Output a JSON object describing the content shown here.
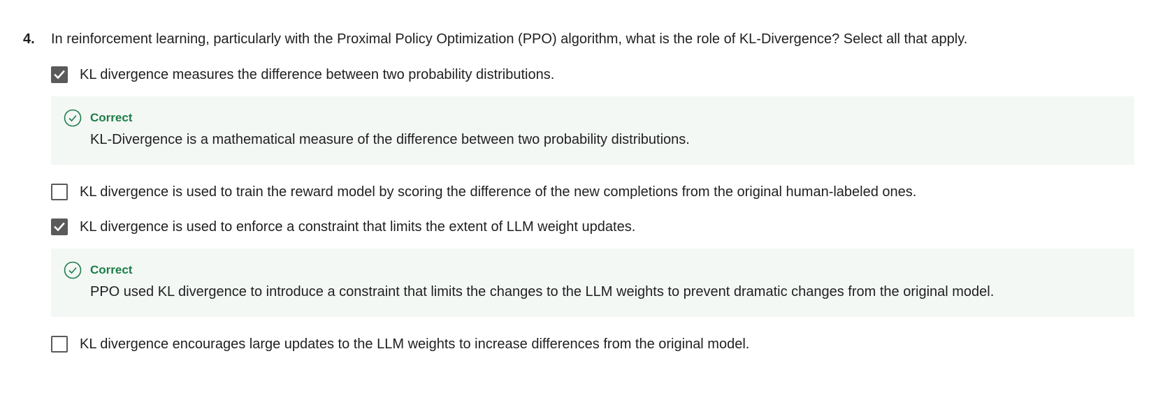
{
  "question": {
    "number": "4.",
    "text": "In reinforcement learning, particularly with the Proximal Policy Optimization (PPO) algorithm, what is the role of KL-Divergence? Select all that apply."
  },
  "options": [
    {
      "label": "KL divergence measures the difference between two probability distributions.",
      "checked": true,
      "feedback": {
        "status": "Correct",
        "text": "KL-Divergence is a mathematical measure of the difference between two probability distributions."
      }
    },
    {
      "label": "KL divergence is used to train the reward model by scoring the difference of the new completions from the original human-labeled ones.",
      "checked": false
    },
    {
      "label": "KL divergence is used to enforce a constraint that limits the extent of LLM weight updates.",
      "checked": true,
      "feedback": {
        "status": "Correct",
        "text": "PPO used KL divergence to introduce a constraint that limits the changes to the LLM weights to prevent dramatic changes from the original model."
      }
    },
    {
      "label": "KL divergence encourages large updates to the LLM weights to increase differences from the original model.",
      "checked": false
    }
  ],
  "colors": {
    "correct_green": "#1e7d48",
    "feedback_bg": "#f3f8f5",
    "checkbox_gray": "#5a5a5a"
  },
  "icons": {
    "checked": "checkmark-icon",
    "correct": "check-circle-icon"
  }
}
